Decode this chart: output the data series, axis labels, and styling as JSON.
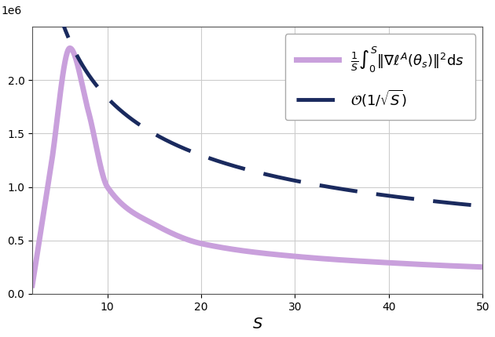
{
  "title": "",
  "xlabel": "$S$",
  "ylabel": "",
  "xlim": [
    2,
    50
  ],
  "ylim": [
    0,
    2500000
  ],
  "yticks": [
    0,
    500000,
    1000000,
    1500000,
    2000000
  ],
  "xticks": [
    10,
    20,
    30,
    40,
    50
  ],
  "line1_color": "#c9a0dc",
  "line2_color": "#1a2a5e",
  "line1_label": "$\\frac{1}{S}\\int_0^{S} \\|\\nabla \\ell^A(\\theta_s)\\|^2 \\mathrm{d}s$",
  "line2_label": "$\\mathcal{O}(1/\\sqrt{S})$",
  "line1_linewidth": 5,
  "line2_linewidth": 3.5,
  "peak_x": 6.0,
  "peak_y": 2300000,
  "c_scale": 5800000,
  "x2_start": 4.5,
  "background_color": "#ffffff",
  "grid_color": "#cccccc"
}
